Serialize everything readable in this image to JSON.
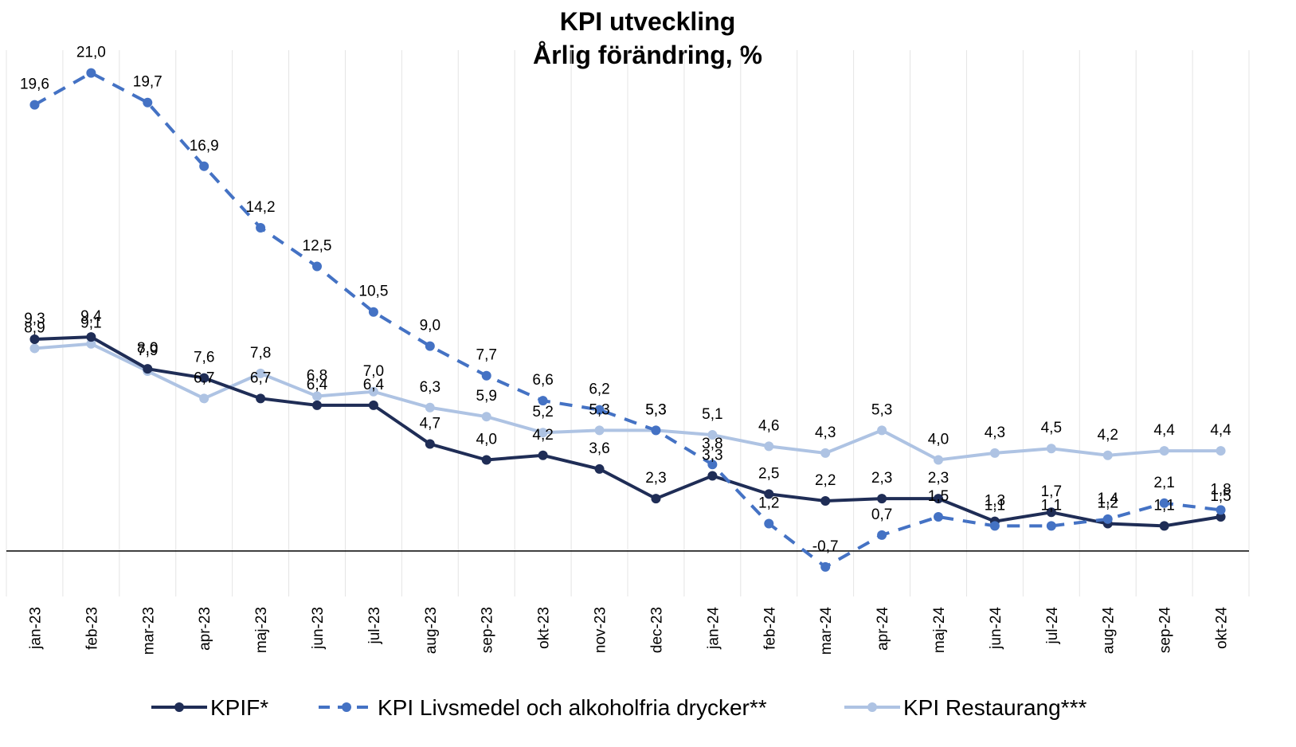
{
  "chart_data": {
    "type": "line",
    "title": "KPI utveckling",
    "subtitle": "Årlig förändring, %",
    "categories": [
      "jan-23",
      "feb-23",
      "mar-23",
      "apr-23",
      "maj-23",
      "jun-23",
      "jul-23",
      "aug-23",
      "sep-23",
      "okt-23",
      "nov-23",
      "dec-23",
      "jan-24",
      "feb-24",
      "mar-24",
      "apr-24",
      "maj-24",
      "jun-24",
      "jul-24",
      "aug-24",
      "sep-24",
      "okt-24"
    ],
    "ylim": [
      -2,
      22
    ],
    "series": [
      {
        "name": "KPIF*",
        "color": "#1f2d56",
        "dash": false,
        "values": [
          9.3,
          9.4,
          8.0,
          7.6,
          6.7,
          6.4,
          6.4,
          4.7,
          4.0,
          4.2,
          3.6,
          2.3,
          3.3,
          2.5,
          2.2,
          2.3,
          2.3,
          1.3,
          1.7,
          1.2,
          1.1,
          1.5
        ],
        "value_labels": [
          "9,3",
          "9,4",
          "8,0",
          "7,6",
          "6,7",
          "6,4",
          "6,4",
          "4,7",
          "4,0",
          "4,2",
          "3,6",
          "2,3",
          "3,3",
          "2,5",
          "2,2",
          "2,3",
          "2,3",
          "1,3",
          "1,7",
          "1,2",
          "1,1",
          "1,5"
        ]
      },
      {
        "name": "KPI Livsmedel och alkoholfria drycker**",
        "color": "#4472c4",
        "dash": true,
        "values": [
          19.6,
          21.0,
          19.7,
          16.9,
          14.2,
          12.5,
          10.5,
          9.0,
          7.7,
          6.6,
          6.2,
          5.3,
          3.8,
          1.2,
          -0.7,
          0.7,
          1.5,
          1.1,
          1.1,
          1.4,
          2.1,
          1.8
        ],
        "value_labels": [
          "19,6",
          "21,0",
          "19,7",
          "16,9",
          "14,2",
          "12,5",
          "10,5",
          "9,0",
          "7,7",
          "6,6",
          "6,2",
          "5,3",
          "3,8",
          "1,2",
          "-0,7",
          "0,7",
          "1,5",
          "1,1",
          "1,1",
          "1,4",
          "2,1",
          "1,8"
        ]
      },
      {
        "name": "KPI Restaurang***",
        "color": "#aec3e3",
        "dash": false,
        "values": [
          8.9,
          9.1,
          7.9,
          6.7,
          7.8,
          6.8,
          7.0,
          6.3,
          5.9,
          5.2,
          5.3,
          5.3,
          5.1,
          4.6,
          4.3,
          5.3,
          4.0,
          4.3,
          4.5,
          4.2,
          4.4,
          4.4
        ],
        "value_labels": [
          "8,9",
          "9,1",
          "7,9",
          "6,7",
          "7,8",
          "6,8",
          "7,0",
          "6,3",
          "5,9",
          "5,2",
          "5,3",
          "5,3",
          "5,1",
          "4,6",
          "4,3",
          "5,3",
          "4,0",
          "4,3",
          "4,5",
          "4,2",
          "4,4",
          "4,4"
        ]
      }
    ]
  }
}
